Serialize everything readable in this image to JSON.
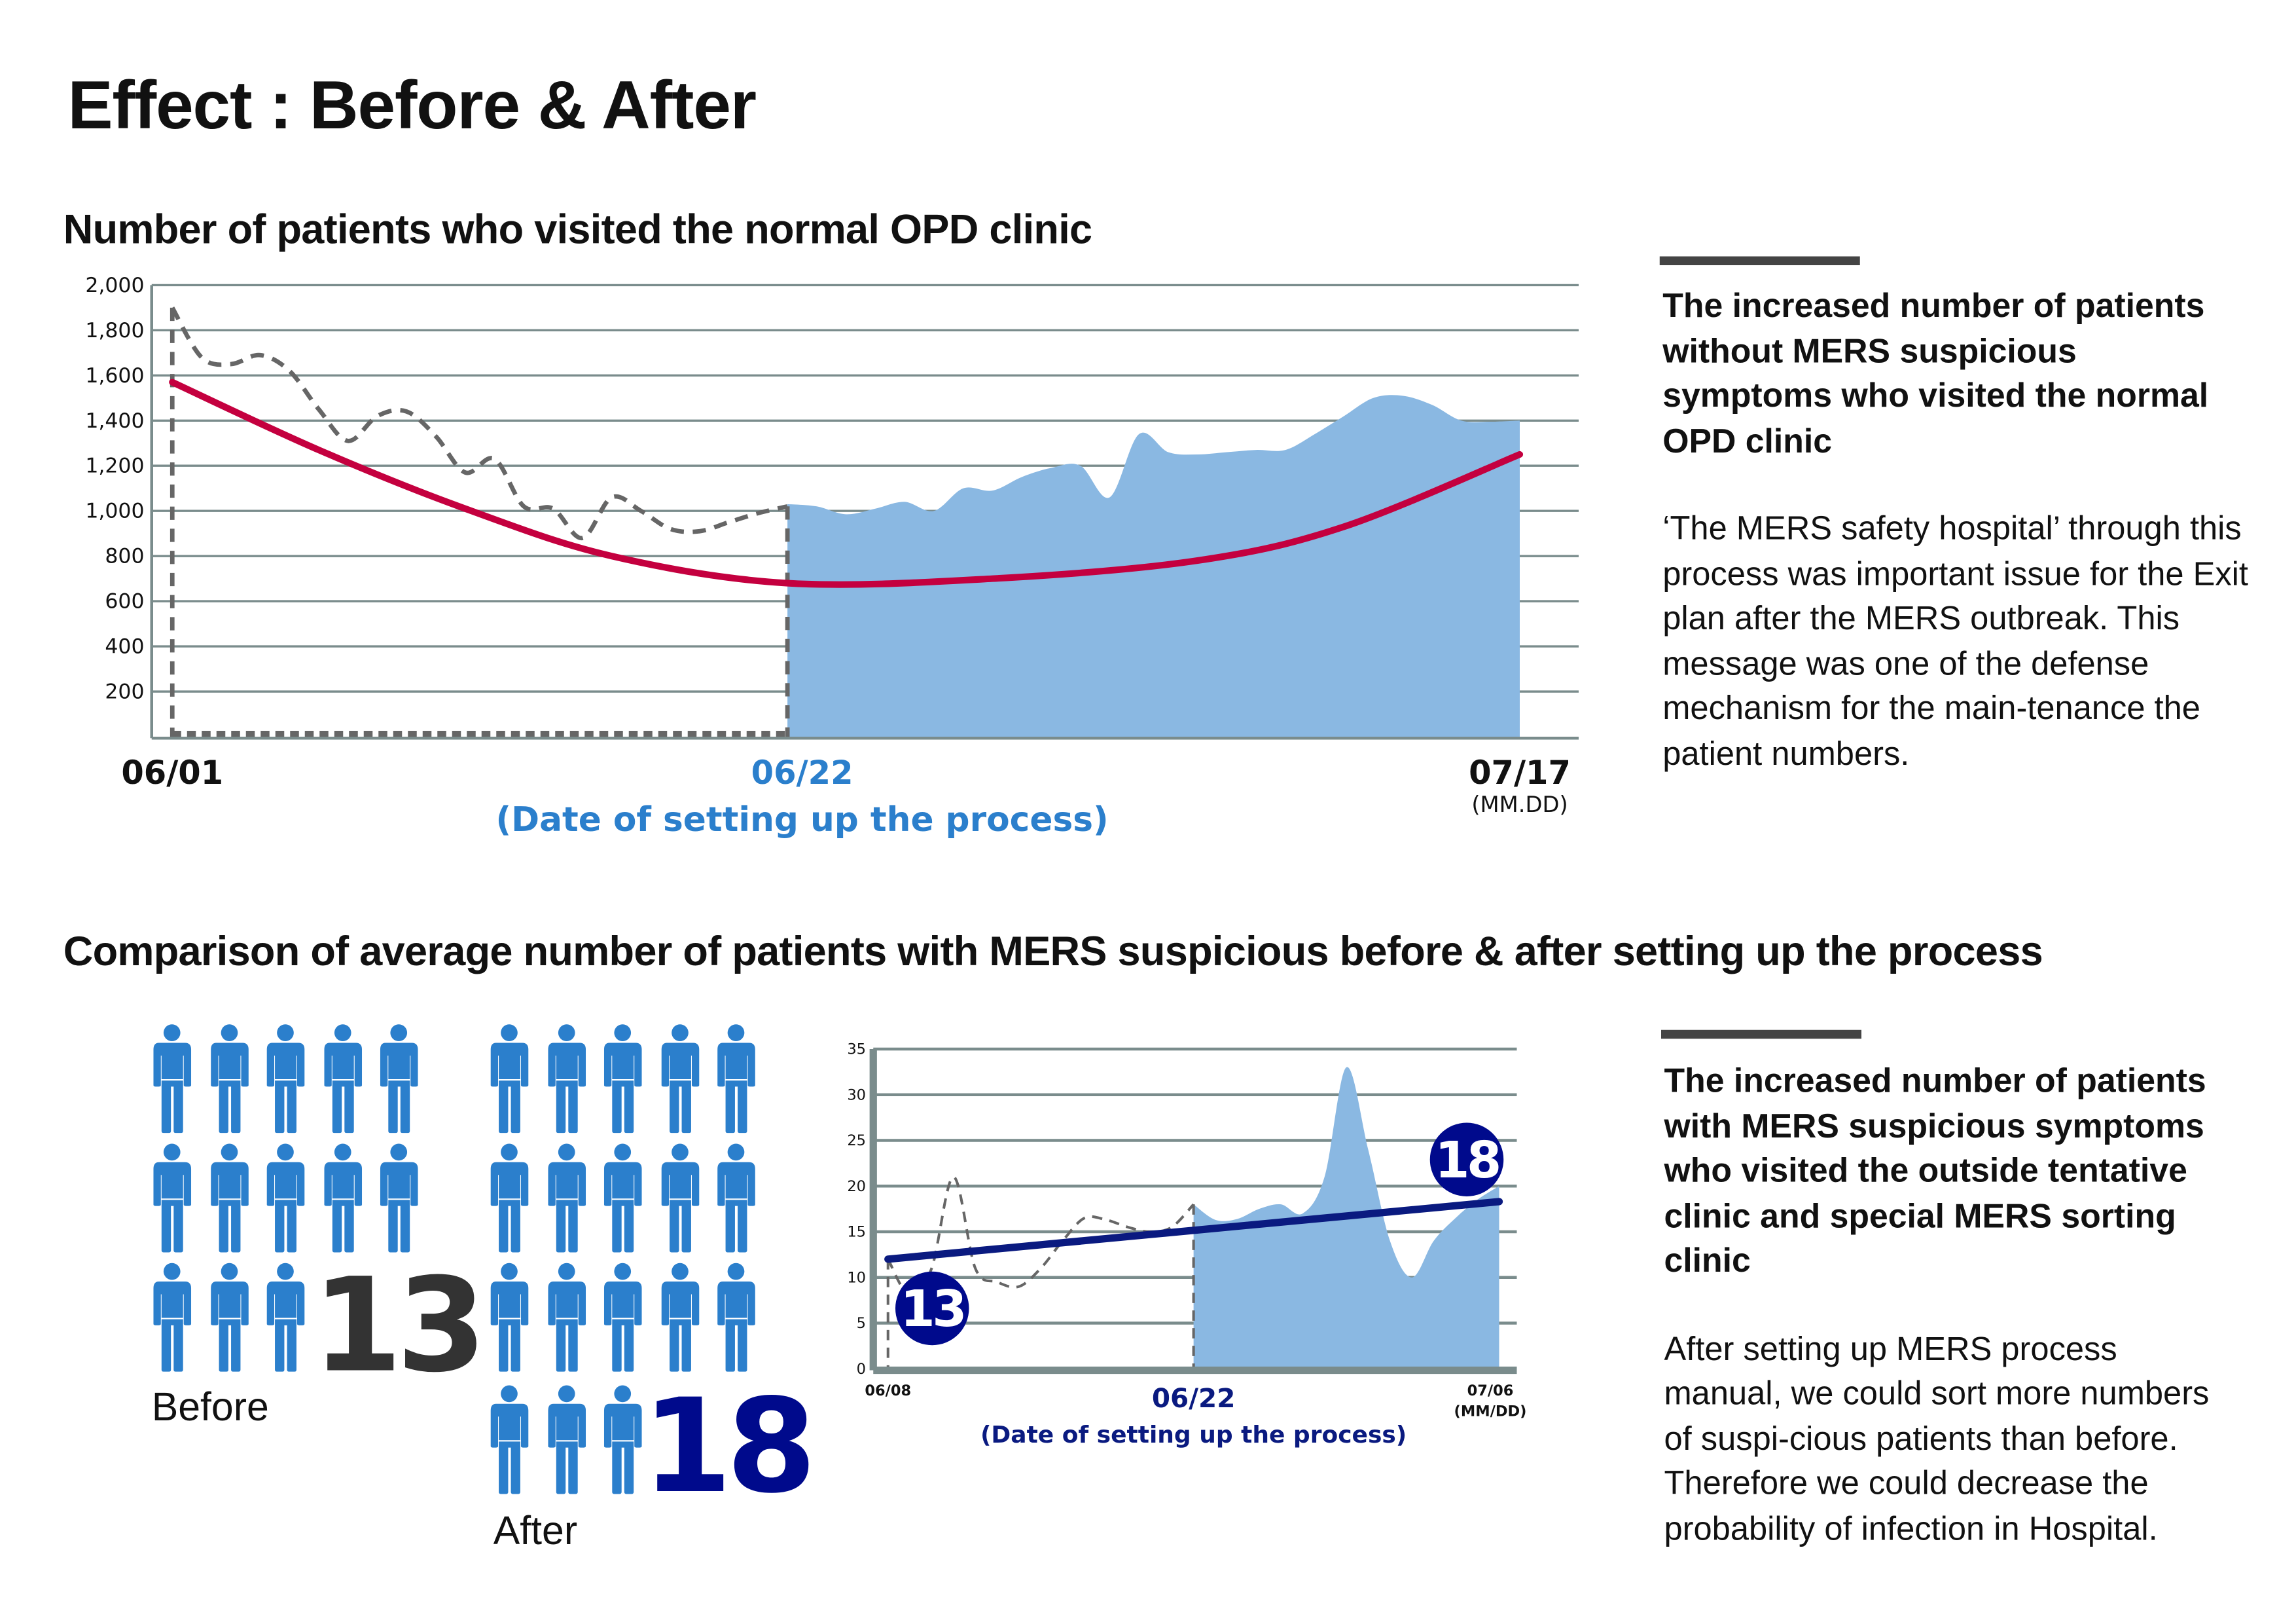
{
  "title": "Effect : Before & After",
  "section1": {
    "heading": "Number of patients who visited the normal OPD clinic",
    "side_title": "The increased number of patients without MERS suspicious symptoms who visited the normal OPD clinic",
    "side_body": "‘The MERS safety hospital’ through this process was important issue for the Exit plan after the MERS outbreak. This message was one of the defense mechanism for the main-tenance the patient numbers."
  },
  "section2": {
    "heading": "Comparison of average number of patients with MERS suspicious before & after setting up the process",
    "before_label": "Before",
    "before_value": "13",
    "before_count": 13,
    "after_label": "After",
    "after_value": "18",
    "after_count": 18,
    "side_title": "The increased number of patients with MERS suspicious symptoms who visited the outside tentative clinic and special MERS sorting clinic",
    "side_body": "After setting up MERS process manual, we could sort more numbers of suspi-cious patients than before. Therefore we could decrease the probability of infection in Hospital."
  },
  "colors": {
    "person": "#2b7fcc",
    "area": "#8ab8e2",
    "trend1": "#c4003f",
    "trend2": "#0a1a80",
    "badge": "#000a8c",
    "highlight_text1": "#2b7fcc",
    "highlight_text2": "#0a1a80",
    "grid": "#7a8c8c",
    "dashed": "#666666"
  },
  "chart_data": [
    {
      "type": "line",
      "title": "Number of patients who visited the normal OPD clinic",
      "yticks": [
        "200",
        "400",
        "600",
        "800",
        "1,000",
        "1,200",
        "1,400",
        "1,600",
        "1,800",
        "2,000"
      ],
      "ylim": [
        0,
        2000
      ],
      "xlim_days": [
        0,
        46
      ],
      "x_labels": {
        "start": "06/01",
        "mid": "06/22",
        "end": "07/17",
        "mid_note": "(Date of setting up the process)",
        "unit": "(MM.DD)"
      },
      "grid": true,
      "before_series": {
        "style": "dashed",
        "x": [
          0,
          1,
          2,
          3,
          4,
          5,
          6,
          7,
          8,
          9,
          10,
          11,
          12,
          13,
          14,
          15,
          16,
          17,
          18,
          19,
          20,
          21
        ],
        "values": [
          1900,
          1680,
          1650,
          1690,
          1620,
          1450,
          1310,
          1420,
          1440,
          1330,
          1170,
          1230,
          1020,
          1010,
          880,
          1060,
          1000,
          920,
          910,
          950,
          990,
          1020
        ]
      },
      "after_series": {
        "style": "area",
        "x": [
          21,
          22,
          23,
          24,
          25,
          26,
          27,
          28,
          29,
          30,
          31,
          32,
          33,
          34,
          35,
          36,
          37,
          38,
          39,
          40,
          41,
          42,
          43,
          44,
          45,
          46
        ],
        "values": [
          1030,
          1020,
          985,
          1010,
          1040,
          1000,
          1100,
          1090,
          1150,
          1190,
          1200,
          1060,
          1340,
          1260,
          1250,
          1260,
          1270,
          1270,
          1340,
          1420,
          1500,
          1510,
          1470,
          1400,
          1395,
          1400
        ]
      },
      "trend": {
        "x": [
          0,
          5,
          10,
          15,
          21,
          28,
          35,
          40,
          46
        ],
        "values": [
          1570,
          1270,
          1010,
          800,
          680,
          700,
          780,
          930,
          1250
        ]
      }
    },
    {
      "type": "line",
      "yticks": [
        "0",
        "5",
        "10",
        "15",
        "20",
        "25",
        "30",
        "35"
      ],
      "ylim": [
        0,
        35
      ],
      "xlim_days": [
        0,
        28
      ],
      "x_labels": {
        "start": "06/08",
        "mid": "06/22",
        "end": "07/06",
        "mid_note": "(Date of setting up the process)",
        "unit": "(MM/DD)"
      },
      "grid": true,
      "before_series": {
        "style": "dashed",
        "x": [
          0,
          1,
          2,
          3,
          4,
          5,
          6,
          7,
          8,
          9,
          10,
          11,
          12,
          13,
          14
        ],
        "values": [
          12,
          8,
          11,
          21,
          11,
          9.5,
          9,
          11,
          14,
          16.5,
          16.3,
          15.5,
          15,
          15.5,
          18
        ]
      },
      "after_series": {
        "style": "area",
        "x": [
          14,
          15,
          16,
          17,
          18,
          19,
          20,
          21,
          22,
          23,
          24,
          25,
          26,
          27,
          28
        ],
        "values": [
          18,
          16.3,
          16.4,
          17.5,
          18,
          17,
          21,
          33,
          24,
          14,
          10,
          14,
          16.5,
          18.5,
          20
        ]
      },
      "trend": {
        "x": [
          0,
          28
        ],
        "values": [
          12,
          18.3
        ]
      },
      "badges": [
        "13",
        "18"
      ]
    }
  ]
}
